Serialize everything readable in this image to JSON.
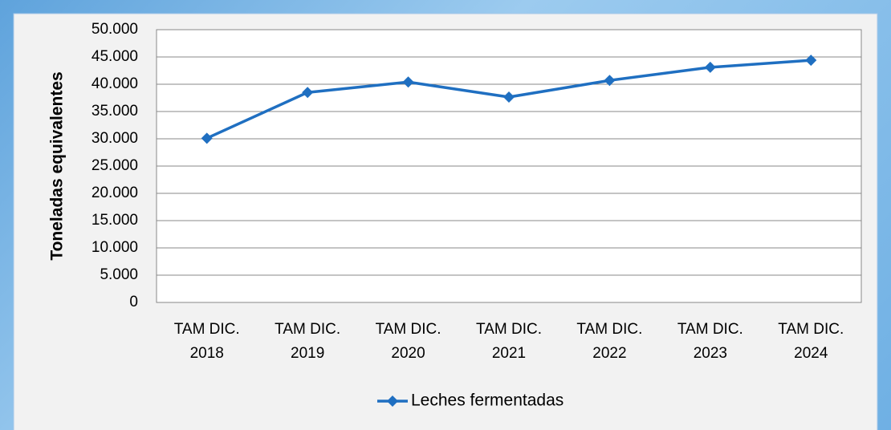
{
  "chart_data": {
    "type": "line",
    "y_axis_label": "Toneladas equivalentes",
    "categories": [
      "TAM DIC. 2018",
      "TAM DIC. 2019",
      "TAM DIC. 2020",
      "TAM DIC. 2021",
      "TAM DIC. 2022",
      "TAM DIC. 2023",
      "TAM DIC. 2024"
    ],
    "series": [
      {
        "name": "Leches fermentadas",
        "color": "#1f6fc1",
        "values": [
          30100,
          38500,
          40400,
          37650,
          40700,
          43100,
          44400
        ]
      }
    ],
    "ylim": [
      0,
      50000
    ],
    "yticks": [
      0,
      {
        "value": 5000,
        "label": "5.000"
      },
      {
        "value": 10000,
        "label": "10.000"
      },
      {
        "value": 15000,
        "label": "15.000"
      },
      {
        "value": 20000,
        "label": "20.000"
      },
      {
        "value": 25000,
        "label": "25.000"
      },
      {
        "value": 30000,
        "label": "30.000"
      },
      {
        "value": 35000,
        "label": "35.000"
      },
      {
        "value": 40000,
        "label": "40.000"
      },
      {
        "value": 45000,
        "label": "45.000"
      },
      {
        "value": 50000,
        "label": "50.000"
      }
    ],
    "grid": true,
    "legend": "bottom"
  }
}
